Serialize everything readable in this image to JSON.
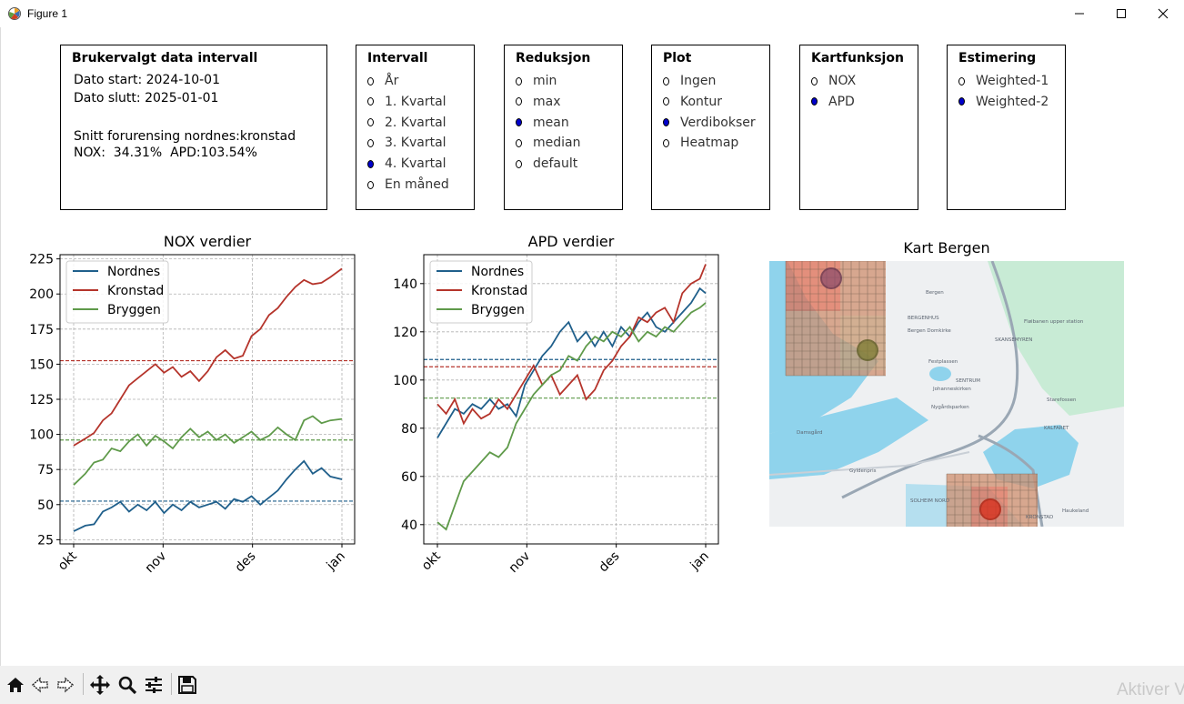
{
  "window": {
    "title": "Figure 1"
  },
  "info_panel": {
    "title": "Brukervalgt data intervall",
    "start": "Dato start: 2024-10-01",
    "end": "Dato slutt: 2025-01-01",
    "avg_label": "Snitt forurensing nordnes:kronstad",
    "avg_values": "NOX:  34.31%  APD:103.54%"
  },
  "panels": {
    "intervall": {
      "title": "Intervall",
      "options": [
        "År",
        "1. Kvartal",
        "2. Kvartal",
        "3. Kvartal",
        "4. Kvartal",
        "En måned"
      ],
      "selected": 4
    },
    "reduksjon": {
      "title": "Reduksjon",
      "options": [
        "min",
        "max",
        "mean",
        "median",
        "default"
      ],
      "selected": 2
    },
    "plot": {
      "title": "Plot",
      "options": [
        "Ingen",
        "Kontur",
        "Verdibokser",
        "Heatmap"
      ],
      "selected": 2
    },
    "kartfunksjon": {
      "title": "Kartfunksjon",
      "options": [
        "NOX",
        "APD"
      ],
      "selected": 1
    },
    "estimering": {
      "title": "Estimering",
      "options": [
        "Weighted-1",
        "Weighted-2"
      ],
      "selected": 1
    }
  },
  "map": {
    "title": "Kart Bergen",
    "labels": [
      "Bergen",
      "BERGENHUS",
      "Bergen Domkirke",
      "SKANSEMYREN",
      "Fløibanen upper station",
      "SENTRUM",
      "Festplassen",
      "Johanneskirken",
      "Starefossen",
      "Nygårdsparken",
      "KALFARET",
      "Damsgård",
      "Gyldenpris",
      "SOLHEIM NORD",
      "KRONSTAD",
      "Haukeland"
    ]
  },
  "colors": {
    "nordnes": "#1f5f8b",
    "kronstad": "#b5342b",
    "bryggen": "#5f9a4a"
  },
  "chart_data": [
    {
      "type": "line",
      "title": "NOX verdier",
      "xlabel": "",
      "ylabel": "",
      "x_ticks": [
        "okt",
        "nov",
        "des",
        "jan"
      ],
      "x_range": [
        0,
        92
      ],
      "ylim": [
        22,
        228
      ],
      "y_ticks": [
        25,
        50,
        75,
        100,
        125,
        150,
        175,
        200,
        225
      ],
      "grid": true,
      "legend": "top-left",
      "series": [
        {
          "name": "Nordnes",
          "color": "#1f5f8b",
          "mean": 52.5,
          "points": [
            [
              0,
              31
            ],
            [
              4,
              35
            ],
            [
              7,
              36
            ],
            [
              10,
              45
            ],
            [
              13,
              48
            ],
            [
              16,
              52
            ],
            [
              19,
              45
            ],
            [
              22,
              50
            ],
            [
              25,
              46
            ],
            [
              28,
              52
            ],
            [
              31,
              44
            ],
            [
              34,
              50
            ],
            [
              37,
              46
            ],
            [
              40,
              52
            ],
            [
              43,
              48
            ],
            [
              46,
              50
            ],
            [
              49,
              52
            ],
            [
              52,
              47
            ],
            [
              55,
              54
            ],
            [
              58,
              52
            ],
            [
              61,
              56
            ],
            [
              64,
              50
            ],
            [
              67,
              55
            ],
            [
              70,
              60
            ],
            [
              73,
              68
            ],
            [
              76,
              75
            ],
            [
              79,
              81
            ],
            [
              82,
              72
            ],
            [
              85,
              76
            ],
            [
              88,
              70
            ],
            [
              92,
              68
            ]
          ]
        },
        {
          "name": "Kronstad",
          "color": "#b5342b",
          "mean": 152.5,
          "points": [
            [
              0,
              92
            ],
            [
              4,
              97
            ],
            [
              7,
              101
            ],
            [
              10,
              110
            ],
            [
              13,
              115
            ],
            [
              16,
              125
            ],
            [
              19,
              135
            ],
            [
              22,
              140
            ],
            [
              25,
              145
            ],
            [
              28,
              150
            ],
            [
              31,
              144
            ],
            [
              34,
              148
            ],
            [
              37,
              141
            ],
            [
              40,
              145
            ],
            [
              43,
              138
            ],
            [
              46,
              145
            ],
            [
              49,
              155
            ],
            [
              52,
              160
            ],
            [
              55,
              154
            ],
            [
              58,
              156
            ],
            [
              61,
              170
            ],
            [
              64,
              175
            ],
            [
              67,
              185
            ],
            [
              70,
              190
            ],
            [
              73,
              198
            ],
            [
              76,
              205
            ],
            [
              79,
              210
            ],
            [
              82,
              207
            ],
            [
              85,
              208
            ],
            [
              88,
              212
            ],
            [
              92,
              218
            ]
          ]
        },
        {
          "name": "Bryggen",
          "color": "#5f9a4a",
          "mean": 96,
          "points": [
            [
              0,
              64
            ],
            [
              4,
              72
            ],
            [
              7,
              80
            ],
            [
              10,
              82
            ],
            [
              13,
              90
            ],
            [
              16,
              88
            ],
            [
              19,
              95
            ],
            [
              22,
              100
            ],
            [
              25,
              92
            ],
            [
              28,
              99
            ],
            [
              31,
              95
            ],
            [
              34,
              90
            ],
            [
              37,
              98
            ],
            [
              40,
              104
            ],
            [
              43,
              98
            ],
            [
              46,
              102
            ],
            [
              49,
              96
            ],
            [
              52,
              100
            ],
            [
              55,
              94
            ],
            [
              58,
              98
            ],
            [
              61,
              102
            ],
            [
              64,
              96
            ],
            [
              67,
              99
            ],
            [
              70,
              105
            ],
            [
              73,
              100
            ],
            [
              76,
              96
            ],
            [
              79,
              110
            ],
            [
              82,
              113
            ],
            [
              85,
              108
            ],
            [
              88,
              110
            ],
            [
              92,
              111
            ]
          ]
        }
      ]
    },
    {
      "type": "line",
      "title": "APD verdier",
      "xlabel": "",
      "ylabel": "",
      "x_ticks": [
        "okt",
        "nov",
        "des",
        "jan"
      ],
      "x_range": [
        0,
        92
      ],
      "ylim": [
        32,
        152
      ],
      "y_ticks": [
        40,
        60,
        80,
        100,
        120,
        140
      ],
      "grid": true,
      "legend": "top-left",
      "series": [
        {
          "name": "Nordnes",
          "color": "#1f5f8b",
          "mean": 108.5,
          "points": [
            [
              0,
              76
            ],
            [
              3,
              82
            ],
            [
              6,
              88
            ],
            [
              9,
              86
            ],
            [
              12,
              90
            ],
            [
              15,
              88
            ],
            [
              18,
              92
            ],
            [
              21,
              88
            ],
            [
              24,
              90
            ],
            [
              27,
              85
            ],
            [
              30,
              98
            ],
            [
              33,
              104
            ],
            [
              36,
              110
            ],
            [
              39,
              114
            ],
            [
              42,
              120
            ],
            [
              45,
              124
            ],
            [
              48,
              116
            ],
            [
              51,
              120
            ],
            [
              54,
              114
            ],
            [
              57,
              120
            ],
            [
              60,
              114
            ],
            [
              63,
              122
            ],
            [
              66,
              118
            ],
            [
              69,
              124
            ],
            [
              72,
              128
            ],
            [
              75,
              122
            ],
            [
              78,
              120
            ],
            [
              81,
              124
            ],
            [
              84,
              128
            ],
            [
              87,
              132
            ],
            [
              90,
              138
            ],
            [
              92,
              136
            ]
          ]
        },
        {
          "name": "Kronstad",
          "color": "#b5342b",
          "mean": 105.5,
          "points": [
            [
              0,
              90
            ],
            [
              3,
              86
            ],
            [
              6,
              92
            ],
            [
              9,
              82
            ],
            [
              12,
              88
            ],
            [
              15,
              84
            ],
            [
              18,
              86
            ],
            [
              21,
              92
            ],
            [
              24,
              88
            ],
            [
              27,
              94
            ],
            [
              30,
              100
            ],
            [
              33,
              106
            ],
            [
              36,
              98
            ],
            [
              39,
              102
            ],
            [
              42,
              94
            ],
            [
              45,
              98
            ],
            [
              48,
              102
            ],
            [
              51,
              92
            ],
            [
              54,
              96
            ],
            [
              57,
              104
            ],
            [
              60,
              108
            ],
            [
              63,
              114
            ],
            [
              66,
              118
            ],
            [
              69,
              126
            ],
            [
              72,
              124
            ],
            [
              75,
              128
            ],
            [
              78,
              130
            ],
            [
              81,
              124
            ],
            [
              84,
              136
            ],
            [
              87,
              140
            ],
            [
              90,
              142
            ],
            [
              92,
              148
            ]
          ]
        },
        {
          "name": "Bryggen",
          "color": "#5f9a4a",
          "mean": 92.5,
          "points": [
            [
              0,
              41
            ],
            [
              3,
              38
            ],
            [
              6,
              48
            ],
            [
              9,
              58
            ],
            [
              12,
              62
            ],
            [
              15,
              66
            ],
            [
              18,
              70
            ],
            [
              21,
              68
            ],
            [
              24,
              72
            ],
            [
              27,
              82
            ],
            [
              30,
              88
            ],
            [
              33,
              94
            ],
            [
              36,
              98
            ],
            [
              39,
              102
            ],
            [
              42,
              104
            ],
            [
              45,
              110
            ],
            [
              48,
              108
            ],
            [
              51,
              114
            ],
            [
              54,
              118
            ],
            [
              57,
              116
            ],
            [
              60,
              120
            ],
            [
              63,
              118
            ],
            [
              66,
              122
            ],
            [
              69,
              116
            ],
            [
              72,
              120
            ],
            [
              75,
              118
            ],
            [
              78,
              122
            ],
            [
              81,
              120
            ],
            [
              84,
              124
            ],
            [
              87,
              128
            ],
            [
              90,
              130
            ],
            [
              92,
              132
            ]
          ]
        }
      ]
    }
  ]
}
